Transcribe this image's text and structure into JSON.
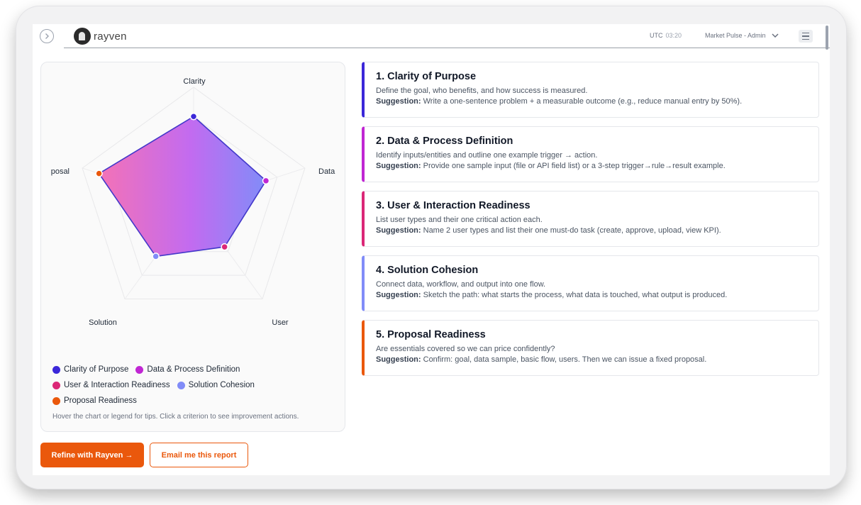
{
  "header": {
    "logo_text": "rayven",
    "utc_label": "UTC",
    "utc_time": "03:20",
    "account": "Market Pulse - Admin"
  },
  "chart_data": {
    "type": "radar",
    "axes": [
      "Clarity",
      "Data",
      "User",
      "Solution",
      "posal"
    ],
    "values": [
      0.75,
      0.65,
      0.45,
      0.55,
      0.85
    ],
    "range": [
      0,
      1
    ],
    "point_colors": [
      "#3b27d9",
      "#c026d3",
      "#db2777",
      "#818cf8",
      "#ea580c"
    ],
    "fill_gradient": [
      "#f472b6",
      "#a855f7",
      "#818cf8"
    ],
    "stroke_color": "#4338ca"
  },
  "legend": {
    "items": [
      {
        "label": "Clarity of Purpose",
        "color": "#3b27d9"
      },
      {
        "label": "Data & Process Definition",
        "color": "#c026d3"
      },
      {
        "label": "User & Interaction Readiness",
        "color": "#db2777"
      },
      {
        "label": "Solution Cohesion",
        "color": "#818cf8"
      },
      {
        "label": "Proposal Readiness",
        "color": "#ea580c"
      }
    ],
    "hint": "Hover the chart or legend for tips. Click a criterion to see improvement actions."
  },
  "actions": {
    "refine_label": "Refine with Rayven →",
    "email_label": "Email me this report"
  },
  "criteria": [
    {
      "title": "1. Clarity of Purpose",
      "description": "Define the goal, who benefits, and how success is measured.",
      "suggestion_label": "Suggestion:",
      "suggestion": "Write a one-sentence problem + a measurable outcome (e.g., reduce manual entry by 50%).",
      "color": "#3b27d9"
    },
    {
      "title": "2. Data & Process Definition",
      "description": "Identify inputs/entities and outline one example trigger → action.",
      "suggestion_label": "Suggestion:",
      "suggestion": "Provide one sample input (file or API field list) or a 3-step trigger→rule→result example.",
      "color": "#c026d3"
    },
    {
      "title": "3. User & Interaction Readiness",
      "description": "List user types and their one critical action each.",
      "suggestion_label": "Suggestion:",
      "suggestion": "Name 2 user types and list their one must-do task (create, approve, upload, view KPI).",
      "color": "#db2777"
    },
    {
      "title": "4. Solution Cohesion",
      "description": "Connect data, workflow, and output into one flow.",
      "suggestion_label": "Suggestion:",
      "suggestion": "Sketch the path: what starts the process, what data is touched, what output is produced.",
      "color": "#818cf8"
    },
    {
      "title": "5. Proposal Readiness",
      "description": "Are essentials covered so we can price confidently?",
      "suggestion_label": "Suggestion:",
      "suggestion": "Confirm: goal, data sample, basic flow, users. Then we can issue a fixed proposal.",
      "color": "#ea580c"
    }
  ]
}
